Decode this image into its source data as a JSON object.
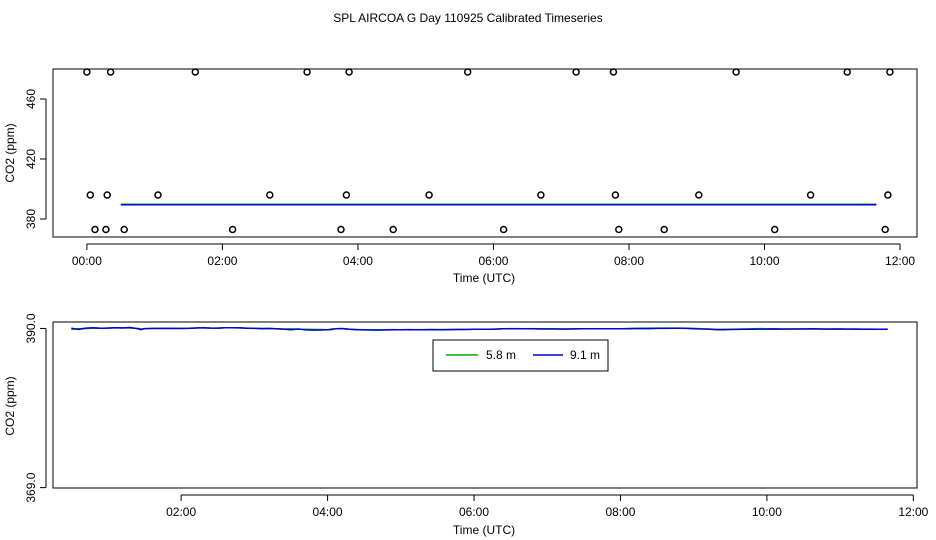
{
  "page_title": "SPL AIRCOA G  Day 110925  Calibrated Timeseries",
  "chart_data": [
    {
      "type": "scatter",
      "title": "",
      "xlabel": "Time (UTC)",
      "ylabel": "CO2 (ppm)",
      "x_unit": "hours",
      "xlim": [
        -0.5,
        12.25
      ],
      "ylim": [
        368,
        480
      ],
      "x_ticks": [
        0,
        2,
        4,
        6,
        8,
        10,
        12
      ],
      "x_tick_labels": [
        "00:00",
        "02:00",
        "04:00",
        "06:00",
        "08:00",
        "10:00",
        "12:00"
      ],
      "y_ticks": [
        380,
        420,
        460
      ],
      "y_tick_labels": [
        "380",
        "420",
        "460"
      ],
      "circles": {
        "name": "calibration points",
        "points": [
          [
            0.0,
            478
          ],
          [
            0.35,
            478
          ],
          [
            1.6,
            478
          ],
          [
            3.25,
            478
          ],
          [
            3.87,
            478
          ],
          [
            5.62,
            478
          ],
          [
            7.22,
            478
          ],
          [
            7.77,
            478
          ],
          [
            9.58,
            478
          ],
          [
            11.22,
            478
          ],
          [
            11.85,
            478
          ],
          [
            0.05,
            396
          ],
          [
            0.3,
            396
          ],
          [
            1.05,
            396
          ],
          [
            2.7,
            396
          ],
          [
            3.83,
            396
          ],
          [
            5.05,
            396
          ],
          [
            6.7,
            396
          ],
          [
            7.8,
            396
          ],
          [
            9.03,
            396
          ],
          [
            10.68,
            396
          ],
          [
            11.82,
            396
          ],
          [
            0.12,
            373
          ],
          [
            0.28,
            373
          ],
          [
            0.55,
            373
          ],
          [
            2.15,
            373
          ],
          [
            3.75,
            373
          ],
          [
            4.52,
            373
          ],
          [
            6.15,
            373
          ],
          [
            7.85,
            373
          ],
          [
            8.52,
            373
          ],
          [
            10.15,
            373
          ],
          [
            11.78,
            373
          ]
        ]
      },
      "series": [
        {
          "name": "5.8 m",
          "color": "#00b000",
          "x": [
            0.5,
            11.65
          ],
          "y": [
            389.8,
            389.8
          ]
        },
        {
          "name": "9.1 m",
          "color": "#0000d0",
          "x": [
            0.5,
            11.65
          ],
          "y": [
            389.5,
            389.5
          ]
        }
      ]
    },
    {
      "type": "line",
      "title": "",
      "xlabel": "Time (UTC)",
      "ylabel": "CO2 (ppm)",
      "x_unit": "hours",
      "xlim": [
        0.25,
        12.05
      ],
      "ylim": [
        368.95,
        390.85
      ],
      "x_ticks": [
        2,
        4,
        6,
        8,
        10,
        12
      ],
      "x_tick_labels": [
        "02:00",
        "04:00",
        "06:00",
        "08:00",
        "10:00",
        "12:00"
      ],
      "y_ticks": [
        369.0,
        390.0
      ],
      "y_tick_labels": [
        "369.0",
        "390.0"
      ],
      "legend": {
        "position": "top-center",
        "entries": [
          "5.8 m",
          "9.1 m"
        ]
      },
      "series": [
        {
          "name": "5.8 m",
          "color": "#00b000",
          "x": [
            0.5,
            0.6,
            0.7,
            0.8,
            0.9,
            1.0,
            1.1,
            1.2,
            1.3,
            1.4,
            1.45,
            1.5,
            1.6,
            1.7,
            1.8,
            1.9,
            2.0,
            2.1,
            2.2,
            2.3,
            2.4,
            2.5,
            2.6,
            2.7,
            2.8,
            2.9,
            3.0,
            3.1,
            3.2,
            3.3,
            3.4,
            3.5,
            3.6,
            3.7,
            3.8,
            3.9,
            4.0,
            4.05,
            4.1,
            4.2,
            4.3,
            4.4,
            4.5,
            4.6,
            4.7,
            4.8,
            4.9,
            5.0,
            5.1,
            5.2,
            5.3,
            5.4,
            5.5,
            5.6,
            5.7,
            5.8,
            5.9,
            6.0,
            6.1,
            6.2,
            6.3,
            6.4,
            6.5,
            6.6,
            6.7,
            6.8,
            6.9,
            7.0,
            7.1,
            7.2,
            7.3,
            7.4,
            7.5,
            7.6,
            7.7,
            7.8,
            7.9,
            8.0,
            8.1,
            8.2,
            8.3,
            8.4,
            8.5,
            8.6,
            8.7,
            8.8,
            8.9,
            9.0,
            9.1,
            9.2,
            9.3,
            9.4,
            9.5,
            9.6,
            9.7,
            9.8,
            9.9,
            10.0,
            10.1,
            10.2,
            10.3,
            10.4,
            10.5,
            10.6,
            10.7,
            10.8,
            10.9,
            11.0,
            11.1,
            11.2,
            11.3,
            11.4,
            11.5,
            11.6,
            11.65
          ],
          "y": [
            389.88,
            389.96,
            389.99,
            390.04,
            390.02,
            390.06,
            390.08,
            390.09,
            390.06,
            390.0,
            389.93,
            389.97,
            390.01,
            390.03,
            390.02,
            390.03,
            390.02,
            390.03,
            390.06,
            390.08,
            390.03,
            390.04,
            390.08,
            390.09,
            390.06,
            390.04,
            390.03,
            390.0,
            390.0,
            389.97,
            389.93,
            389.96,
            389.9,
            389.9,
            389.88,
            389.86,
            389.84,
            389.93,
            389.96,
            389.96,
            389.89,
            389.86,
            389.84,
            389.82,
            389.81,
            389.83,
            389.85,
            389.84,
            389.86,
            389.85,
            389.85,
            389.87,
            389.86,
            389.86,
            389.88,
            389.87,
            389.87,
            389.89,
            389.89,
            389.89,
            389.93,
            389.95,
            389.98,
            389.98,
            389.97,
            389.98,
            389.96,
            389.96,
            389.95,
            389.91,
            389.93,
            389.95,
            389.95,
            389.95,
            389.96,
            389.96,
            389.96,
            389.96,
            389.99,
            390.02,
            390.03,
            390.04,
            390.04,
            390.04,
            390.04,
            390.04,
            390.02,
            390.0,
            389.96,
            389.92,
            389.89,
            389.89,
            389.89,
            389.91,
            389.93,
            389.95,
            389.98,
            389.97,
            389.95,
            389.92,
            389.93,
            389.93,
            389.94,
            389.96,
            389.95,
            389.93,
            389.94,
            389.93,
            389.91,
            389.92,
            389.91,
            389.9,
            389.9,
            389.9,
            389.91
          ]
        },
        {
          "name": "9.1 m",
          "color": "#0000d0",
          "x": [
            0.5,
            0.6,
            0.7,
            0.8,
            0.9,
            1.0,
            1.1,
            1.2,
            1.3,
            1.4,
            1.45,
            1.5,
            1.6,
            1.7,
            1.8,
            1.9,
            2.0,
            2.1,
            2.2,
            2.3,
            2.4,
            2.5,
            2.6,
            2.7,
            2.8,
            2.9,
            3.0,
            3.1,
            3.2,
            3.3,
            3.4,
            3.5,
            3.6,
            3.7,
            3.8,
            3.9,
            4.0,
            4.05,
            4.1,
            4.2,
            4.3,
            4.4,
            4.5,
            4.6,
            4.7,
            4.8,
            4.9,
            5.0,
            5.1,
            5.2,
            5.3,
            5.4,
            5.5,
            5.6,
            5.7,
            5.8,
            5.9,
            6.0,
            6.1,
            6.2,
            6.3,
            6.4,
            6.5,
            6.6,
            6.7,
            6.8,
            6.9,
            7.0,
            7.1,
            7.2,
            7.3,
            7.4,
            7.5,
            7.6,
            7.7,
            7.8,
            7.9,
            8.0,
            8.1,
            8.2,
            8.3,
            8.4,
            8.5,
            8.6,
            8.7,
            8.8,
            8.9,
            9.0,
            9.1,
            9.2,
            9.3,
            9.4,
            9.5,
            9.6,
            9.7,
            9.8,
            9.9,
            10.0,
            10.1,
            10.2,
            10.3,
            10.4,
            10.5,
            10.6,
            10.7,
            10.8,
            10.9,
            11.0,
            11.1,
            11.2,
            11.3,
            11.4,
            11.5,
            11.6,
            11.65
          ],
          "y": [
            390.03,
            389.88,
            390.05,
            390.1,
            390.03,
            390.04,
            390.1,
            390.06,
            390.13,
            389.98,
            389.85,
            389.98,
            389.99,
            389.99,
            390.0,
            389.99,
            389.99,
            390.0,
            390.06,
            390.1,
            390.06,
            390.05,
            390.1,
            390.09,
            390.09,
            390.03,
            390.0,
            389.95,
            389.99,
            389.95,
            389.89,
            389.84,
            389.93,
            389.81,
            389.78,
            389.8,
            389.82,
            389.85,
            389.95,
            389.99,
            389.89,
            389.82,
            389.81,
            389.79,
            389.78,
            389.81,
            389.82,
            389.82,
            389.83,
            389.82,
            389.82,
            389.83,
            389.82,
            389.84,
            389.85,
            389.86,
            389.86,
            389.89,
            389.89,
            389.9,
            389.91,
            389.95,
            389.97,
            389.97,
            389.96,
            389.97,
            389.93,
            389.92,
            389.93,
            389.92,
            389.93,
            389.94,
            389.96,
            389.96,
            389.96,
            389.96,
            389.96,
            389.96,
            389.96,
            389.98,
            389.99,
            389.98,
            390.0,
            390.01,
            390.03,
            390.03,
            390.0,
            389.97,
            389.93,
            389.91,
            389.85,
            389.83,
            389.86,
            389.87,
            389.89,
            389.9,
            389.91,
            389.91,
            389.92,
            389.91,
            389.93,
            389.93,
            389.93,
            389.94,
            389.93,
            389.91,
            389.91,
            389.92,
            389.91,
            389.91,
            389.9,
            389.91,
            389.9,
            389.89,
            389.89
          ]
        }
      ]
    }
  ]
}
